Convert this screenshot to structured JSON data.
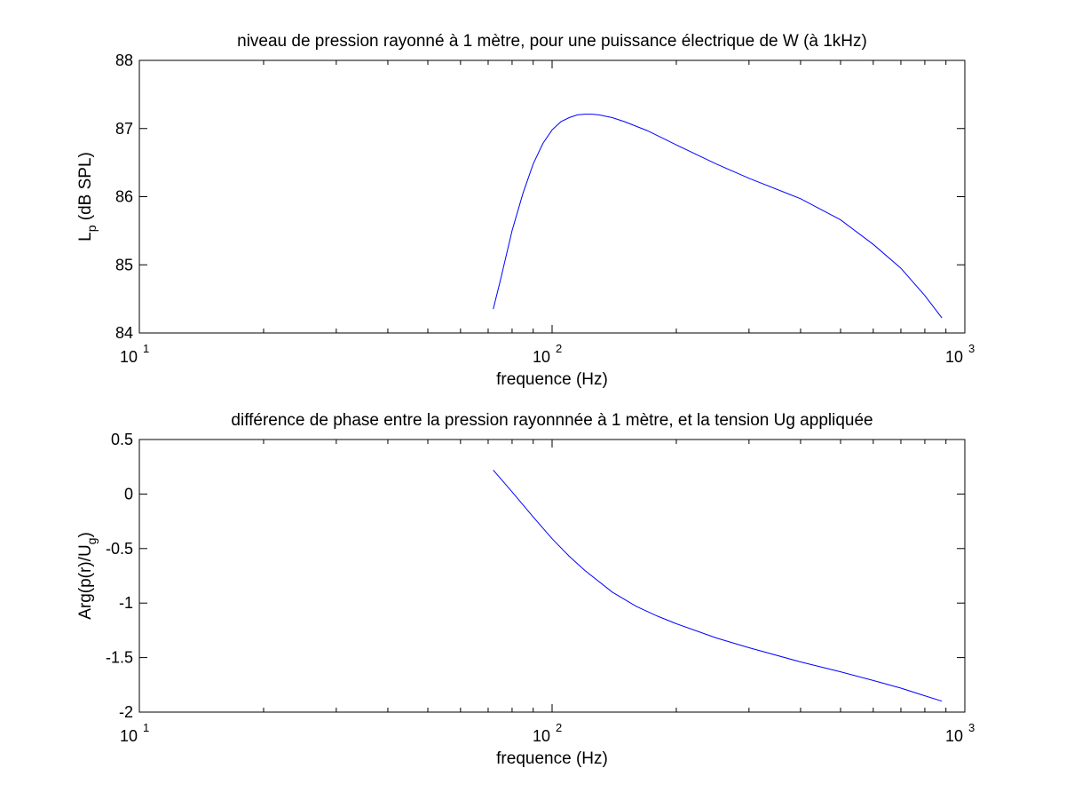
{
  "chart_data": [
    {
      "type": "line",
      "title": "niveau de pression rayonné à 1 mètre, pour une puissance électrique de W (à  1kHz)",
      "xlabel": "frequence (Hz)",
      "ylabel_main": "L",
      "ylabel_sub": "p",
      "ylabel_rest": " (dB SPL)",
      "xscale": "log",
      "xlim": [
        10,
        1000
      ],
      "ylim": [
        84,
        88
      ],
      "xticks": [
        {
          "value": 10,
          "base": "10",
          "exp": "1"
        },
        {
          "value": 100,
          "base": "10",
          "exp": "2"
        },
        {
          "value": 1000,
          "base": "10",
          "exp": "3"
        }
      ],
      "yticks": [
        {
          "value": 84,
          "label": "84"
        },
        {
          "value": 85,
          "label": "85"
        },
        {
          "value": 86,
          "label": "86"
        },
        {
          "value": 87,
          "label": "87"
        },
        {
          "value": 88,
          "label": "88"
        }
      ],
      "grid": false,
      "color": "#0000ff",
      "x": [
        72,
        75,
        80,
        85,
        90,
        95,
        100,
        105,
        110,
        115,
        120,
        125,
        130,
        140,
        150,
        170,
        200,
        250,
        300,
        400,
        500,
        600,
        700,
        800,
        880
      ],
      "y": [
        84.35,
        84.78,
        85.5,
        86.05,
        86.48,
        86.78,
        86.98,
        87.1,
        87.16,
        87.2,
        87.21,
        87.21,
        87.2,
        87.16,
        87.1,
        86.97,
        86.76,
        86.48,
        86.27,
        85.97,
        85.66,
        85.3,
        84.95,
        84.55,
        84.22
      ]
    },
    {
      "type": "line",
      "title": "différence de phase entre la pression rayonnnée à 1 mètre, et la tension Ug appliquée",
      "xlabel": "frequence (Hz)",
      "ylabel_main": "Arg(p(r)/U",
      "ylabel_sub": "g",
      "ylabel_rest": ")",
      "xscale": "log",
      "xlim": [
        10,
        1000
      ],
      "ylim": [
        -2,
        0.5
      ],
      "xticks": [
        {
          "value": 10,
          "base": "10",
          "exp": "1"
        },
        {
          "value": 100,
          "base": "10",
          "exp": "2"
        },
        {
          "value": 1000,
          "base": "10",
          "exp": "3"
        }
      ],
      "yticks": [
        {
          "value": -2,
          "label": "-2"
        },
        {
          "value": -1.5,
          "label": "-1.5"
        },
        {
          "value": -1,
          "label": "-1"
        },
        {
          "value": -0.5,
          "label": "-0.5"
        },
        {
          "value": 0,
          "label": "0"
        },
        {
          "value": 0.5,
          "label": "0.5"
        }
      ],
      "grid": false,
      "color": "#0000ff",
      "x": [
        72,
        80,
        90,
        100,
        110,
        120,
        140,
        160,
        180,
        200,
        250,
        300,
        400,
        500,
        600,
        700,
        800,
        880
      ],
      "y": [
        0.22,
        0.02,
        -0.21,
        -0.41,
        -0.57,
        -0.7,
        -0.9,
        -1.03,
        -1.12,
        -1.19,
        -1.32,
        -1.41,
        -1.54,
        -1.63,
        -1.71,
        -1.78,
        -1.85,
        -1.9
      ]
    }
  ]
}
